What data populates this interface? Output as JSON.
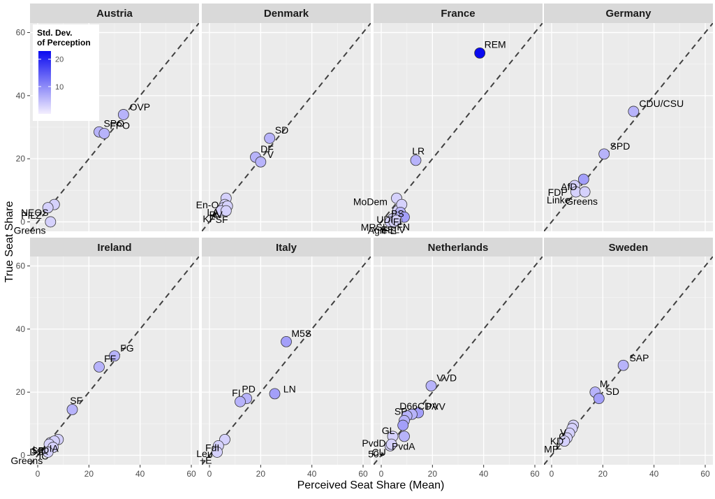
{
  "figure": {
    "xlabel": "Perceived Seat Share (Mean)",
    "ylabel": "True Seat Share"
  },
  "legend": {
    "title_line1": "Std. Dev.",
    "title_line2": "of Perception",
    "ticks": [
      10,
      20
    ],
    "range": [
      0,
      23
    ],
    "color_low": "#f4effe",
    "color_high": "#0a0af0"
  },
  "colors": {
    "panel_bg": "#ebebeb",
    "strip_bg": "#d9d9d9",
    "grid_major": "#ffffff",
    "grid_minor": "#f4f4f4",
    "diagonal": "#404040",
    "point_stroke": "#333333"
  },
  "chart_data": {
    "type": "scatter",
    "facets": [
      "Austria",
      "Denmark",
      "France",
      "Germany",
      "Ireland",
      "Italy",
      "Netherlands",
      "Sweden"
    ],
    "xlim": [
      -3,
      63
    ],
    "ylim": [
      -3,
      63
    ],
    "xticks": [
      0,
      20,
      40,
      60
    ],
    "yticks": [
      0,
      20,
      40,
      60
    ],
    "reference_line": "y = x (dashed)",
    "grid": true,
    "legend_position": "top-left (inside first panel)",
    "panels": [
      {
        "name": "Austria",
        "points": [
          {
            "label": "OVP",
            "x": 33.5,
            "y": 34.0,
            "sd": 6
          },
          {
            "label": "SPO",
            "x": 24.0,
            "y": 28.5,
            "sd": 6
          },
          {
            "label": "FPO",
            "x": 26.0,
            "y": 28.0,
            "sd": 6
          },
          {
            "label": "NEOS",
            "x": 6.5,
            "y": 5.5,
            "sd": 3
          },
          {
            "label": "PILZ",
            "x": 4.0,
            "y": 4.5,
            "sd": 3
          },
          {
            "label": "Greens",
            "x": 5.0,
            "y": 0.0,
            "sd": 3
          }
        ]
      },
      {
        "name": "Denmark",
        "points": [
          {
            "label": "SD",
            "x": 23.5,
            "y": 26.5,
            "sd": 6
          },
          {
            "label": "DF",
            "x": 18.0,
            "y": 20.5,
            "sd": 6
          },
          {
            "label": "V",
            "x": 20.0,
            "y": 19.0,
            "sd": 6
          },
          {
            "label": "En-O",
            "x": 6.5,
            "y": 7.5,
            "sd": 3
          },
          {
            "label": "LA",
            "x": 6.0,
            "y": 5.5,
            "sd": 3
          },
          {
            "label": "A",
            "x": 5.5,
            "y": 4.5,
            "sd": 3
          },
          {
            "label": "RV",
            "x": 7.0,
            "y": 5.0,
            "sd": 3
          },
          {
            "label": "KF",
            "x": 4.5,
            "y": 3.5,
            "sd": 3
          },
          {
            "label": "SF",
            "x": 6.5,
            "y": 3.5,
            "sd": 3
          }
        ]
      },
      {
        "name": "France",
        "points": [
          {
            "label": "REM",
            "x": 38.5,
            "y": 53.5,
            "sd": 23
          },
          {
            "label": "LR",
            "x": 13.5,
            "y": 19.5,
            "sd": 6
          },
          {
            "label": "MoDem",
            "x": 6.0,
            "y": 7.5,
            "sd": 3
          },
          {
            "label": "UDI",
            "x": 6.5,
            "y": 3.5,
            "sd": 3
          },
          {
            "label": "PS",
            "x": 8.0,
            "y": 5.5,
            "sd": 3
          },
          {
            "label": "FI",
            "x": 7.5,
            "y": 3.0,
            "sd": 6
          },
          {
            "label": "FN",
            "x": 9.0,
            "y": 1.5,
            "sd": 8
          },
          {
            "label": "MRSL",
            "x": 4.5,
            "y": 1.0,
            "sd": 3
          },
          {
            "label": "Agir",
            "x": 3.5,
            "y": 0.0,
            "sd": 3
          },
          {
            "label": "PE",
            "x": 5.0,
            "y": 0.0,
            "sd": 3
          },
          {
            "label": "EELV",
            "x": 6.0,
            "y": 0.5,
            "sd": 3
          }
        ]
      },
      {
        "name": "Germany",
        "points": [
          {
            "label": "CDU/CSU",
            "x": 32.0,
            "y": 35.0,
            "sd": 6
          },
          {
            "label": "SPD",
            "x": 20.5,
            "y": 21.5,
            "sd": 6
          },
          {
            "label": "AfD",
            "x": 12.5,
            "y": 13.5,
            "sd": 8
          },
          {
            "label": "FDP",
            "x": 9.0,
            "y": 11.5,
            "sd": 3
          },
          {
            "label": "Linke",
            "x": 9.5,
            "y": 9.5,
            "sd": 3
          },
          {
            "label": "Greens",
            "x": 13.0,
            "y": 9.5,
            "sd": 3
          }
        ]
      },
      {
        "name": "Ireland",
        "points": [
          {
            "label": "FG",
            "x": 30.0,
            "y": 31.5,
            "sd": 6
          },
          {
            "label": "FF",
            "x": 24.0,
            "y": 28.0,
            "sd": 6
          },
          {
            "label": "SF",
            "x": 13.5,
            "y": 14.5,
            "sd": 6
          },
          {
            "label": "IA",
            "x": 8.0,
            "y": 5.0,
            "sd": 3
          },
          {
            "label": "SP",
            "x": 5.0,
            "y": 4.0,
            "sd": 3
          },
          {
            "label": "Lab",
            "x": 6.5,
            "y": 4.5,
            "sd": 3
          },
          {
            "label": "DS",
            "x": 4.5,
            "y": 3.5,
            "sd": 3
          },
          {
            "label": "IC",
            "x": 6.0,
            "y": 2.5,
            "sd": 3
          },
          {
            "label": "Greens",
            "x": 4.0,
            "y": 1.0,
            "sd": 3
          }
        ]
      },
      {
        "name": "Italy",
        "points": [
          {
            "label": "M5S",
            "x": 30.0,
            "y": 36.0,
            "sd": 8
          },
          {
            "label": "LN",
            "x": 25.5,
            "y": 19.5,
            "sd": 8
          },
          {
            "label": "PD",
            "x": 14.5,
            "y": 18.0,
            "sd": 6
          },
          {
            "label": "FI",
            "x": 12.0,
            "y": 17.0,
            "sd": 6
          },
          {
            "label": "FdI",
            "x": 6.0,
            "y": 5.0,
            "sd": 3
          },
          {
            "label": "Leu",
            "x": 3.5,
            "y": 3.0,
            "sd": 3
          },
          {
            "label": "+E",
            "x": 3.0,
            "y": 1.0,
            "sd": 3
          }
        ]
      },
      {
        "name": "Netherlands",
        "points": [
          {
            "label": "VVD",
            "x": 19.5,
            "y": 22.0,
            "sd": 6
          },
          {
            "label": "PVV",
            "x": 14.5,
            "y": 13.5,
            "sd": 8
          },
          {
            "label": "CDA",
            "x": 12.0,
            "y": 13.0,
            "sd": 6
          },
          {
            "label": "D66",
            "x": 10.0,
            "y": 12.5,
            "sd": 6
          },
          {
            "label": "SP",
            "x": 9.0,
            "y": 11.0,
            "sd": 6
          },
          {
            "label": "GL",
            "x": 8.5,
            "y": 9.5,
            "sd": 8
          },
          {
            "label": "PvdD",
            "x": 4.5,
            "y": 6.0,
            "sd": 3
          },
          {
            "label": "PvdA",
            "x": 9.0,
            "y": 6.0,
            "sd": 6
          },
          {
            "label": "50+",
            "x": 3.5,
            "y": 3.0,
            "sd": 3
          },
          {
            "label": "CU",
            "x": 4.0,
            "y": 3.5,
            "sd": 3
          }
        ]
      },
      {
        "name": "Sweden",
        "points": [
          {
            "label": "SAP",
            "x": 28.0,
            "y": 28.5,
            "sd": 6
          },
          {
            "label": "M",
            "x": 17.0,
            "y": 20.0,
            "sd": 6
          },
          {
            "label": "SD",
            "x": 18.5,
            "y": 18.0,
            "sd": 8
          },
          {
            "label": "V",
            "x": 8.5,
            "y": 9.5,
            "sd": 3
          },
          {
            "label": "C",
            "x": 8.0,
            "y": 8.5,
            "sd": 3
          },
          {
            "label": "KD",
            "x": 7.0,
            "y": 7.0,
            "sd": 3
          },
          {
            "label": "L",
            "x": 6.0,
            "y": 5.5,
            "sd": 3
          },
          {
            "label": "MP",
            "x": 5.0,
            "y": 4.5,
            "sd": 3
          }
        ]
      }
    ]
  }
}
